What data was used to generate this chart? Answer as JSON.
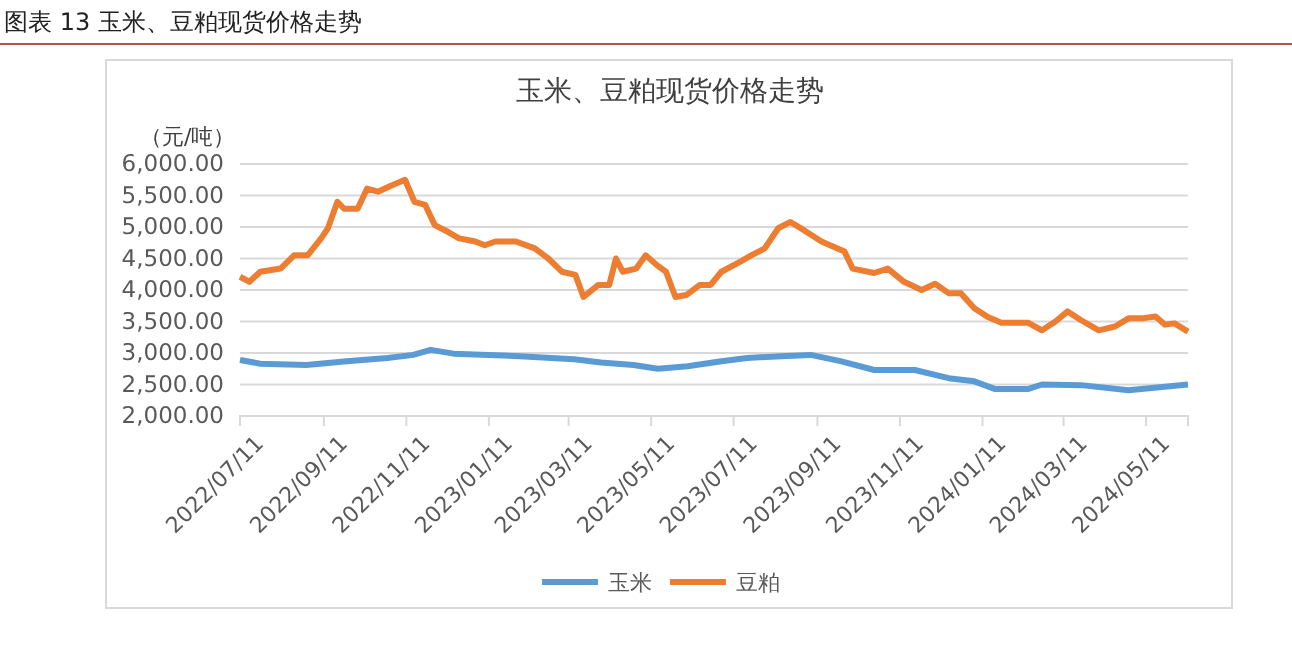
{
  "chart_data": {
    "type": "line",
    "title": "玉米、豆粕现货价格走势",
    "ylabel": "（元/吨）",
    "annotations": [
      "图表 13 玉米、豆粕现货价格走势"
    ],
    "xlim": [
      "2022-07-11",
      "2024-06-11"
    ],
    "xticks": [
      {
        "value": "2022-07-11",
        "label": "2022/07/11"
      },
      {
        "value": "2022-09-11",
        "label": "2022/09/11"
      },
      {
        "value": "2022-11-11",
        "label": "2022/11/11"
      },
      {
        "value": "2023-01-11",
        "label": "2023/01/11"
      },
      {
        "value": "2023-03-11",
        "label": "2023/03/11"
      },
      {
        "value": "2023-05-11",
        "label": "2023/05/11"
      },
      {
        "value": "2023-07-11",
        "label": "2023/07/11"
      },
      {
        "value": "2023-09-11",
        "label": "2023/09/11"
      },
      {
        "value": "2023-11-11",
        "label": "2023/11/11"
      },
      {
        "value": "2024-01-11",
        "label": "2024/01/11"
      },
      {
        "value": "2024-03-11",
        "label": "2024/03/11"
      },
      {
        "value": "2024-05-11",
        "label": "2024/05/11"
      }
    ],
    "ylim": [
      2000,
      6000
    ],
    "yticks": [
      {
        "value": 2000,
        "label": "2,000.00"
      },
      {
        "value": 2500,
        "label": "2,500.00"
      },
      {
        "value": 3000,
        "label": "3,000.00"
      },
      {
        "value": 3500,
        "label": "3,500.00"
      },
      {
        "value": 4000,
        "label": "4,000.00"
      },
      {
        "value": 4500,
        "label": "4,500.00"
      },
      {
        "value": 5000,
        "label": "5,000.00"
      },
      {
        "value": 5500,
        "label": "5,500.00"
      },
      {
        "value": 6000,
        "label": "6,000.00"
      }
    ],
    "grid": "y",
    "legend": "bottom",
    "line_style": "solid",
    "series": [
      {
        "name": "玉米",
        "color": "#5b9bd5",
        "x": [
          "2022-07-11",
          "2022-07-26",
          "2022-08-29",
          "2022-09-28",
          "2022-10-28",
          "2022-11-16",
          "2022-11-29",
          "2022-12-16",
          "2023-02-03",
          "2023-03-15",
          "2023-04-04",
          "2023-04-28",
          "2023-05-16",
          "2023-06-07",
          "2023-07-02",
          "2023-07-21",
          "2023-08-15",
          "2023-09-06",
          "2023-09-28",
          "2023-10-23",
          "2023-11-22",
          "2023-12-17",
          "2024-01-05",
          "2024-01-20",
          "2024-02-14",
          "2024-02-24",
          "2024-03-24",
          "2024-04-28",
          "2024-06-11"
        ],
        "values": [
          2890,
          2830,
          2810,
          2870,
          2920,
          2970,
          3050,
          2990,
          2950,
          2900,
          2850,
          2810,
          2750,
          2790,
          2870,
          2920,
          2950,
          2970,
          2870,
          2730,
          2730,
          2600,
          2550,
          2430,
          2430,
          2500,
          2490,
          2410,
          2500
        ]
      },
      {
        "name": "豆粕",
        "color": "#ed7d31",
        "x": [
          "2022-07-11",
          "2022-07-18",
          "2022-07-26",
          "2022-08-10",
          "2022-08-20",
          "2022-08-30",
          "2022-09-09",
          "2022-09-14",
          "2022-09-21",
          "2022-09-26",
          "2022-10-06",
          "2022-10-13",
          "2022-10-21",
          "2022-10-31",
          "2022-11-10",
          "2022-11-17",
          "2022-11-25",
          "2022-12-02",
          "2022-12-12",
          "2022-12-20",
          "2023-01-01",
          "2023-01-08",
          "2023-01-16",
          "2023-01-31",
          "2023-02-14",
          "2023-02-24",
          "2023-03-06",
          "2023-03-16",
          "2023-03-22",
          "2023-04-02",
          "2023-04-10",
          "2023-04-15",
          "2023-04-20",
          "2023-04-30",
          "2023-05-07",
          "2023-05-15",
          "2023-05-22",
          "2023-05-29",
          "2023-06-06",
          "2023-06-16",
          "2023-06-24",
          "2023-07-02",
          "2023-07-16",
          "2023-07-24",
          "2023-08-03",
          "2023-08-13",
          "2023-08-22",
          "2023-09-01",
          "2023-09-14",
          "2023-10-01",
          "2023-10-07",
          "2023-10-23",
          "2023-11-02",
          "2023-11-14",
          "2023-11-27",
          "2023-12-07",
          "2023-12-17",
          "2023-12-26",
          "2024-01-05",
          "2024-01-15",
          "2024-01-25",
          "2024-02-14",
          "2024-02-24",
          "2024-03-05",
          "2024-03-14",
          "2024-03-24",
          "2024-04-06",
          "2024-04-18",
          "2024-04-28",
          "2024-05-08",
          "2024-05-18",
          "2024-05-25",
          "2024-06-01",
          "2024-06-11"
        ],
        "values": [
          4210,
          4130,
          4290,
          4340,
          4550,
          4550,
          4820,
          4980,
          5400,
          5290,
          5290,
          5610,
          5560,
          5660,
          5750,
          5400,
          5350,
          5030,
          4920,
          4820,
          4770,
          4710,
          4770,
          4770,
          4660,
          4500,
          4290,
          4240,
          3890,
          4080,
          4080,
          4500,
          4290,
          4340,
          4550,
          4400,
          4290,
          3890,
          3920,
          4080,
          4080,
          4290,
          4450,
          4550,
          4660,
          4980,
          5080,
          4950,
          4770,
          4610,
          4340,
          4270,
          4340,
          4130,
          4000,
          4100,
          3950,
          3950,
          3710,
          3570,
          3480,
          3480,
          3360,
          3500,
          3660,
          3520,
          3360,
          3420,
          3550,
          3550,
          3580,
          3450,
          3470,
          3340
        ]
      }
    ]
  }
}
